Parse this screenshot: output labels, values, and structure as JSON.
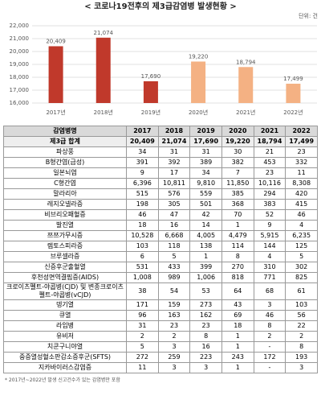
{
  "chart_data": {
    "type": "bar",
    "title": "< 코로나19전후의 제3급감염병 발생현황 >",
    "unit": "단위: 건",
    "categories": [
      "2017년",
      "2018년",
      "2019년",
      "2020년",
      "2021년",
      "2022년"
    ],
    "values": [
      20409,
      21074,
      17690,
      19220,
      18794,
      17499
    ],
    "value_labels": [
      "20,409",
      "21,074",
      "17,690",
      "19,220",
      "18,794",
      "17,499"
    ],
    "colors": [
      "#c0392b",
      "#c0392b",
      "#c0392b",
      "#f4b183",
      "#f4b183",
      "#f4b183"
    ],
    "ylim": [
      16000,
      22000
    ],
    "yticks": [
      {
        "value": 16000,
        "label": "16,000"
      },
      {
        "value": 17000,
        "label": "17,000"
      },
      {
        "value": 18000,
        "label": "18,000"
      },
      {
        "value": 19000,
        "label": "19,000"
      },
      {
        "value": 20000,
        "label": "20,000"
      },
      {
        "value": 21000,
        "label": "21,000"
      },
      {
        "value": 22000,
        "label": "22,000"
      }
    ],
    "grid": true
  },
  "table": {
    "header": [
      "감염병명",
      "2017",
      "2018",
      "2019",
      "2020",
      "2021",
      "2022"
    ],
    "rows": [
      [
        "제3급 합계",
        "20,409",
        "21,074",
        "17,690",
        "19,220",
        "18,794",
        "17,499"
      ],
      [
        "파상풍",
        "34",
        "31",
        "31",
        "30",
        "21",
        "23"
      ],
      [
        "B형간염(급성)",
        "391",
        "392",
        "389",
        "382",
        "453",
        "332"
      ],
      [
        "일본뇌염",
        "9",
        "17",
        "34",
        "7",
        "23",
        "11"
      ],
      [
        "C형간염",
        "6,396",
        "10,811",
        "9,810",
        "11,850",
        "10,116",
        "8,308"
      ],
      [
        "말라리아",
        "515",
        "576",
        "559",
        "385",
        "294",
        "420"
      ],
      [
        "레지오넬라증",
        "198",
        "305",
        "501",
        "368",
        "383",
        "415"
      ],
      [
        "비브리오패혈증",
        "46",
        "47",
        "42",
        "70",
        "52",
        "46"
      ],
      [
        "발진열",
        "18",
        "16",
        "14",
        "1",
        "9",
        "4"
      ],
      [
        "쯔쯔가무시증",
        "10,528",
        "6,668",
        "4,005",
        "4,479",
        "5,915",
        "6,235"
      ],
      [
        "렙토스피라증",
        "103",
        "118",
        "138",
        "114",
        "144",
        "125"
      ],
      [
        "브루셀라증",
        "6",
        "5",
        "1",
        "8",
        "4",
        "5"
      ],
      [
        "신증후군출혈열",
        "531",
        "433",
        "399",
        "270",
        "310",
        "302"
      ],
      [
        "후천성면역결핍증(AIDS)",
        "1,008",
        "989",
        "1,006",
        "818",
        "771",
        "825"
      ],
      [
        "크로이츠펠트-야콥병(CJD) 및 변종크로이츠펠트-야콥병(vCJD)",
        "38",
        "54",
        "53",
        "64",
        "68",
        "61"
      ],
      [
        "뎅기열",
        "171",
        "159",
        "273",
        "43",
        "3",
        "103"
      ],
      [
        "큐열",
        "96",
        "163",
        "162",
        "69",
        "46",
        "56"
      ],
      [
        "라임병",
        "31",
        "23",
        "23",
        "18",
        "8",
        "22"
      ],
      [
        "유비저",
        "2",
        "2",
        "8",
        "1",
        "2",
        "2"
      ],
      [
        "치쿤구니야열",
        "5",
        "3",
        "16",
        "1",
        "-",
        "8"
      ],
      [
        "중증열성혈소판감소증후군(SFTS)",
        "272",
        "259",
        "223",
        "243",
        "172",
        "193"
      ],
      [
        "지카바이러스감염증",
        "11",
        "3",
        "3",
        "1",
        "-",
        "3"
      ]
    ]
  },
  "footnote": "* 2017년~2022년 발생 신고건수가 있는 감염병만 포함"
}
